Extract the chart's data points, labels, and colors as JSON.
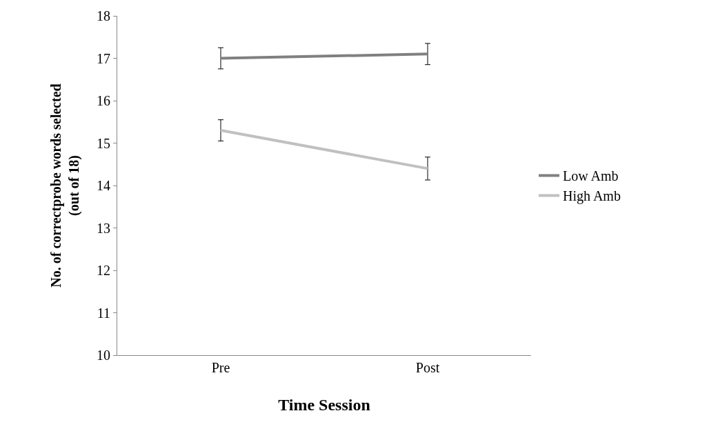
{
  "chart_data": {
    "type": "line",
    "xlabel": "Time Session",
    "ylabel": "No. of correctprobe words selected\n(out of 18)",
    "categories": [
      "Pre",
      "Post"
    ],
    "series": [
      {
        "name": "Low Amb",
        "color": "#808080",
        "values": [
          17.0,
          17.1
        ],
        "errors": [
          0.25,
          0.25
        ]
      },
      {
        "name": "High Amb",
        "color": "#c0c0c0",
        "values": [
          15.3,
          14.4
        ],
        "errors": [
          0.25,
          0.27
        ]
      }
    ],
    "ylim": [
      10,
      18
    ],
    "yticks": [
      10,
      11,
      12,
      13,
      14,
      15,
      16,
      17,
      18
    ],
    "legend": "right",
    "marker": "none",
    "line_style": "solid"
  }
}
